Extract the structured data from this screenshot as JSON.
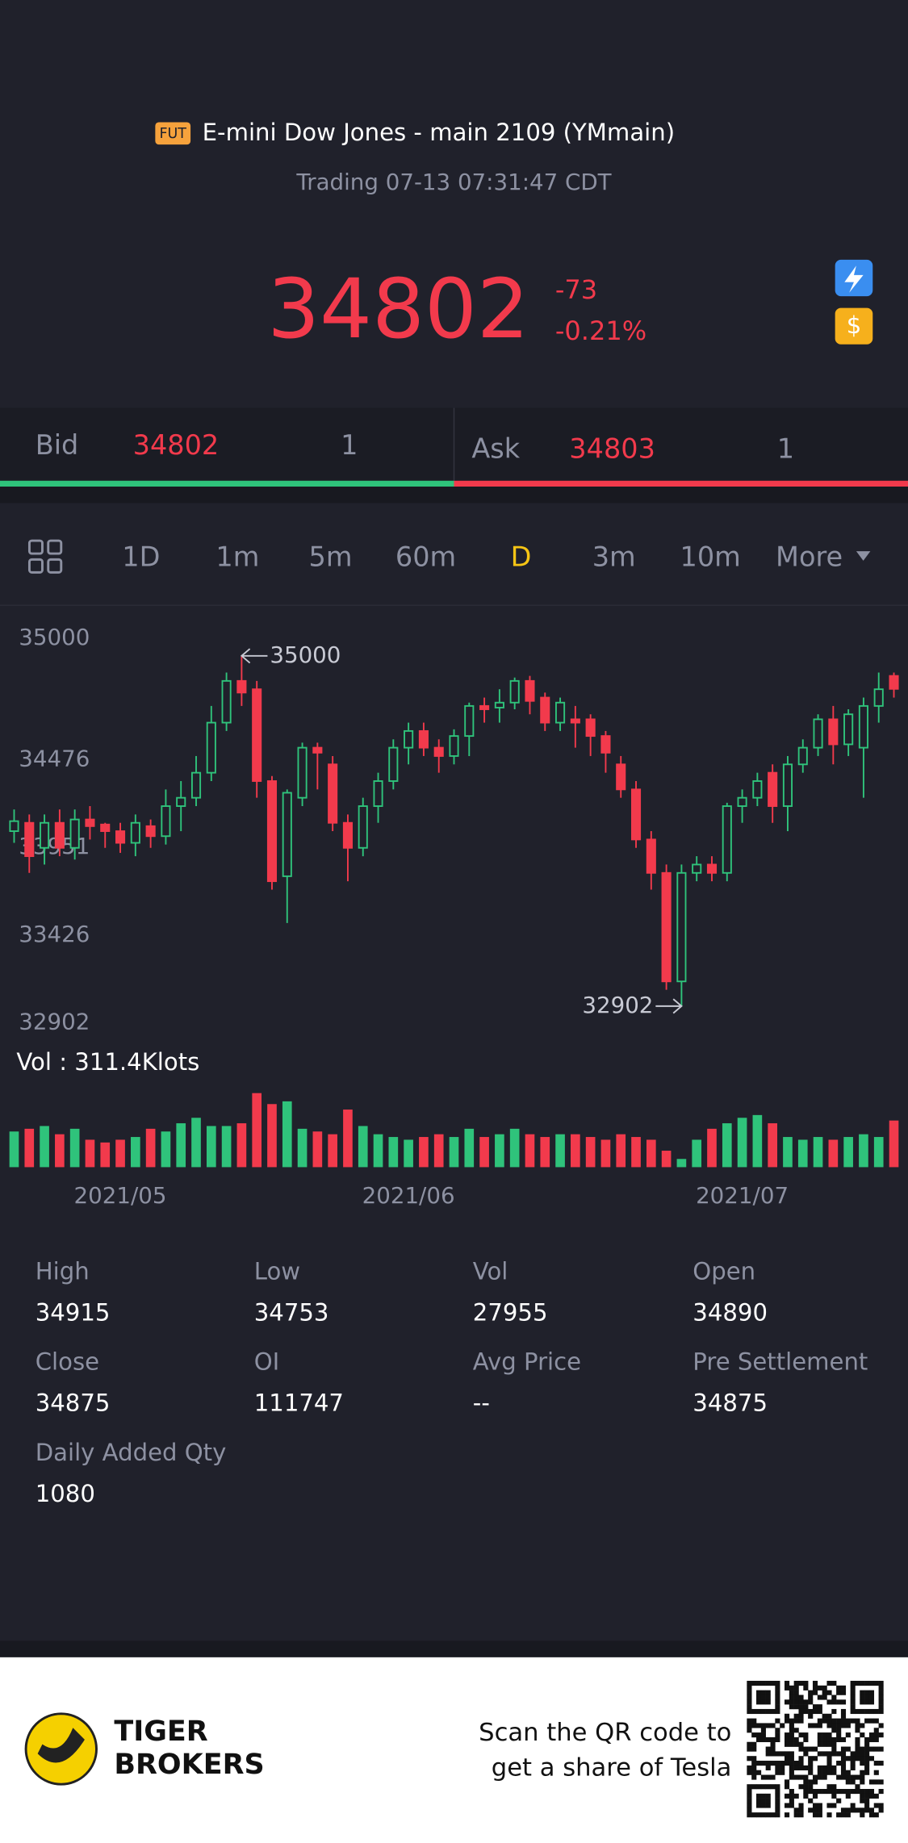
{
  "header": {
    "badge": "FUT",
    "title": "E-mini Dow Jones - main 2109 (YMmain)",
    "status": "Trading 07-13 07:31:47 CDT"
  },
  "quote": {
    "price": "34802",
    "change": "-73",
    "change_pct": "-0.21%"
  },
  "bid": {
    "label": "Bid",
    "price": "34802",
    "size": "1"
  },
  "ask": {
    "label": "Ask",
    "price": "34803",
    "size": "1"
  },
  "tabs": [
    "1D",
    "1m",
    "5m",
    "60m",
    "D",
    "3m",
    "10m",
    "More"
  ],
  "active_tab": "D",
  "chart_data": {
    "type": "candlestick",
    "up_color": "#2fc37b",
    "down_color": "#f23a4c",
    "grid": false,
    "ylim": [
      32902,
      35000
    ],
    "yticks": [
      35000,
      34476,
      33951,
      33426,
      32902
    ],
    "categories": [
      null,
      null,
      null,
      null,
      null,
      null,
      null,
      "2021/05",
      null,
      null,
      null,
      null,
      null,
      null,
      null,
      null,
      null,
      null,
      null,
      null,
      null,
      null,
      null,
      null,
      null,
      null,
      "2021/06",
      null,
      null,
      null,
      null,
      null,
      null,
      null,
      null,
      null,
      null,
      null,
      null,
      null,
      null,
      null,
      null,
      null,
      null,
      null,
      null,
      null,
      "2021/07",
      null,
      null,
      null,
      null,
      null,
      null,
      null,
      null,
      null,
      null
    ],
    "open": [
      33950,
      34000,
      33850,
      34000,
      33850,
      34020,
      33990,
      33950,
      33880,
      33980,
      33920,
      34100,
      34150,
      34300,
      34600,
      34850,
      34800,
      34250,
      33680,
      34150,
      34450,
      34350,
      34000,
      33850,
      34100,
      34250,
      34450,
      34550,
      34450,
      34400,
      34520,
      34700,
      34690,
      34720,
      34850,
      34750,
      34600,
      34620,
      34620,
      34520,
      34350,
      34200,
      33900,
      33700,
      33050,
      33700,
      33750,
      33700,
      34100,
      34150,
      34300,
      34100,
      34350,
      34450,
      34620,
      34470,
      34450,
      34700,
      34880
    ],
    "high": [
      34080,
      34050,
      34050,
      34080,
      34080,
      34100,
      34000,
      34000,
      34050,
      34020,
      34200,
      34250,
      34400,
      34700,
      34900,
      35000,
      34850,
      34280,
      34200,
      34480,
      34480,
      34400,
      34050,
      34150,
      34300,
      34500,
      34600,
      34600,
      34500,
      34560,
      34720,
      34750,
      34800,
      34870,
      34880,
      34780,
      34750,
      34700,
      34650,
      34550,
      34400,
      34250,
      33950,
      33750,
      33750,
      33800,
      33800,
      34120,
      34200,
      34300,
      34350,
      34400,
      34500,
      34650,
      34700,
      34680,
      34750,
      34900,
      34900
    ],
    "low": [
      33880,
      33700,
      33750,
      33800,
      33780,
      33900,
      33850,
      33820,
      33800,
      33850,
      33870,
      33950,
      34100,
      34250,
      34550,
      34700,
      34150,
      33600,
      33400,
      34100,
      34200,
      33950,
      33650,
      33800,
      34000,
      34200,
      34350,
      34400,
      34300,
      34350,
      34400,
      34600,
      34600,
      34680,
      34650,
      34550,
      34550,
      34450,
      34400,
      34300,
      34150,
      33850,
      33600,
      33000,
      32902,
      33650,
      33650,
      33650,
      34000,
      34100,
      34000,
      33950,
      34300,
      34400,
      34350,
      34400,
      34150,
      34600,
      34750
    ],
    "close": [
      34010,
      33800,
      34000,
      33850,
      34020,
      33980,
      33950,
      33880,
      34000,
      33920,
      34100,
      34150,
      34300,
      34600,
      34850,
      34780,
      34250,
      33650,
      34180,
      34450,
      34420,
      34000,
      33850,
      34100,
      34250,
      34450,
      34550,
      34450,
      34400,
      34520,
      34700,
      34680,
      34720,
      34850,
      34730,
      34600,
      34720,
      34600,
      34520,
      34420,
      34200,
      33900,
      33700,
      33050,
      33700,
      33750,
      33700,
      34100,
      34150,
      34250,
      34100,
      34350,
      34450,
      34620,
      34470,
      34650,
      34700,
      34800,
      34802
    ],
    "max_marker": {
      "index": 15,
      "value": 35000
    },
    "min_marker": {
      "index": 44,
      "value": 32902
    },
    "volume": {
      "label": "Vol  : 311.4Klots",
      "ylim": [
        0,
        300
      ],
      "values": [
        130,
        140,
        150,
        120,
        140,
        100,
        90,
        100,
        110,
        140,
        130,
        160,
        180,
        150,
        150,
        160,
        270,
        230,
        240,
        140,
        130,
        120,
        210,
        150,
        120,
        110,
        100,
        110,
        120,
        110,
        140,
        110,
        120,
        140,
        120,
        110,
        120,
        120,
        110,
        100,
        120,
        110,
        100,
        60,
        30,
        100,
        140,
        160,
        180,
        190,
        160,
        110,
        100,
        110,
        100,
        110,
        120,
        110,
        170
      ]
    }
  },
  "stats": [
    {
      "label": "High",
      "value": "34915"
    },
    {
      "label": "Low",
      "value": "34753"
    },
    {
      "label": "Vol",
      "value": "27955"
    },
    {
      "label": "Open",
      "value": "34890"
    },
    {
      "label": "Close",
      "value": "34875"
    },
    {
      "label": "OI",
      "value": "111747"
    },
    {
      "label": "Avg Price",
      "value": "--"
    },
    {
      "label": "Pre Settlement",
      "value": "34875"
    },
    {
      "label": "Daily Added Qty",
      "value": "1080"
    }
  ],
  "footer": {
    "brand": [
      "TIGER",
      "BROKERS"
    ],
    "promo": [
      "Scan the QR code to",
      "get a share of Tesla"
    ]
  }
}
